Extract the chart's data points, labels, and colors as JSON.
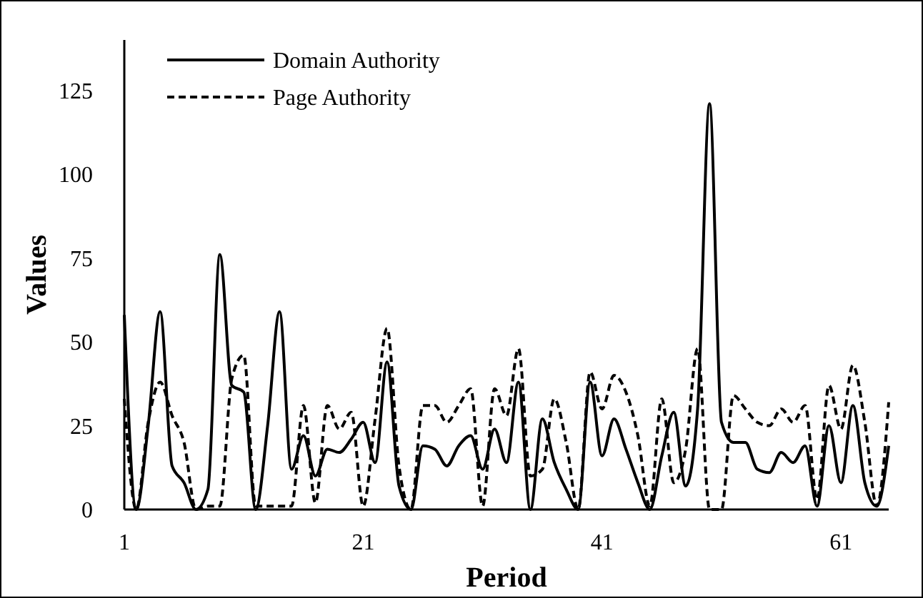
{
  "chart_data": {
    "type": "line",
    "xlabel": "Period",
    "ylabel": "Values",
    "x": [
      1,
      2,
      3,
      4,
      5,
      6,
      7,
      8,
      9,
      10,
      11,
      12,
      13,
      14,
      15,
      16,
      17,
      18,
      19,
      20,
      21,
      22,
      23,
      24,
      25,
      26,
      27,
      28,
      29,
      30,
      31,
      32,
      33,
      34,
      35,
      36,
      37,
      38,
      39,
      40,
      41,
      42,
      43,
      44,
      45,
      46,
      47,
      48,
      49,
      50,
      51,
      52,
      53,
      54,
      55,
      56,
      57,
      58,
      59,
      60,
      61,
      62,
      63,
      64,
      65
    ],
    "series": [
      {
        "name": "Domain Authority",
        "color": "#000000",
        "line_style": "solid",
        "values": [
          58,
          0,
          25,
          59,
          13,
          8,
          0,
          6,
          76,
          37,
          35,
          0,
          25,
          59,
          12,
          22,
          10,
          18,
          17,
          21,
          26,
          14,
          44,
          7,
          0,
          19,
          18,
          13,
          19,
          22,
          12,
          24,
          14,
          38,
          0,
          27,
          14,
          6,
          0,
          38,
          16,
          27,
          18,
          8,
          0,
          16,
          29,
          7,
          30,
          121,
          26,
          20,
          20,
          12,
          11,
          17,
          14,
          19,
          1,
          25,
          8,
          31,
          8,
          1,
          19
        ]
      },
      {
        "name": "Page Authority",
        "color": "#000000",
        "line_style": "dashed",
        "values": [
          33,
          0,
          26,
          38,
          28,
          20,
          0,
          1,
          1,
          39,
          46,
          1,
          1,
          1,
          1,
          31,
          2,
          31,
          24,
          29,
          1,
          27,
          54,
          13,
          0,
          31,
          31,
          26,
          31,
          36,
          1,
          36,
          28,
          48,
          10,
          12,
          33,
          20,
          0,
          41,
          30,
          40,
          35,
          22,
          1,
          33,
          8,
          18,
          48,
          0,
          0,
          34,
          30,
          26,
          25,
          30,
          26,
          31,
          3,
          37,
          24,
          43,
          26,
          1,
          32
        ]
      }
    ],
    "xlim": [
      1,
      65
    ],
    "xticks": [
      1,
      21,
      41,
      61
    ],
    "ylim": [
      0,
      140
    ],
    "yticks": [
      0,
      25,
      50,
      75,
      100,
      125
    ],
    "grid": false,
    "legend": "top left",
    "marker": "none"
  }
}
